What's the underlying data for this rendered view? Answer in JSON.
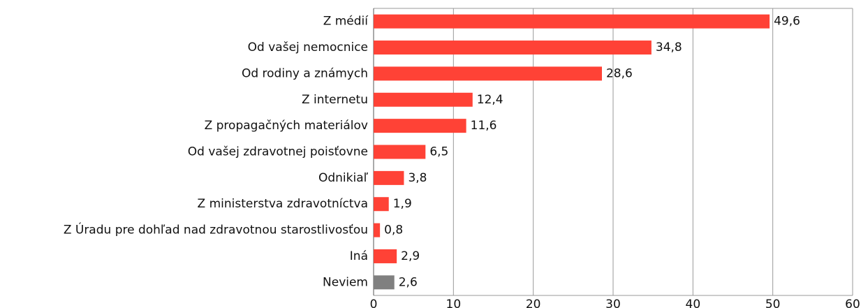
{
  "chart_data": {
    "type": "bar",
    "orientation": "horizontal",
    "categories": [
      "Z médií",
      "Od vašej nemocnice",
      "Od rodiny a známych",
      "Z internetu",
      "Z propagačných materiálov",
      "Od vašej zdravotnej poisťovne",
      "Odnikiaľ",
      "Z ministerstva zdravotníctva",
      "Z Úradu pre dohľad nad zdravotnou starostlivosťou",
      "Iná",
      "Neviem"
    ],
    "values": [
      49.6,
      34.8,
      28.6,
      12.4,
      11.6,
      6.5,
      3.8,
      1.9,
      0.8,
      2.9,
      2.6
    ],
    "value_labels": [
      "49,6",
      "34,8",
      "28,6",
      "12,4",
      "11,6",
      "6,5",
      "3,8",
      "1,9",
      "0,8",
      "2,9",
      "2,6"
    ],
    "colors": [
      "#ff4236",
      "#ff4236",
      "#ff4236",
      "#ff4236",
      "#ff4236",
      "#ff4236",
      "#ff4236",
      "#ff4236",
      "#ff4236",
      "#ff4236",
      "#808080"
    ],
    "xlim": [
      0,
      60
    ],
    "xticks": [
      0,
      10,
      20,
      30,
      40,
      50,
      60
    ],
    "grid": true
  }
}
